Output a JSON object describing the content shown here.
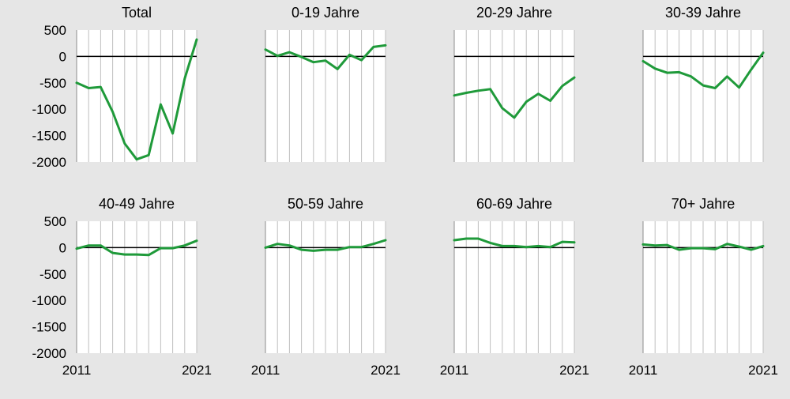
{
  "colors": {
    "background": "#e6e6e6",
    "plot_background": "#ffffff",
    "series_line": "#1f9a3a",
    "zero_line": "#000000",
    "grid": "#bfbfbf"
  },
  "chart_data": [
    {
      "type": "line",
      "title": "Total",
      "x": [
        2011,
        2012,
        2013,
        2014,
        2015,
        2016,
        2017,
        2018,
        2019,
        2020,
        2021
      ],
      "ylim": [
        -2000,
        500
      ],
      "yticks": [
        "500",
        "0",
        "-500",
        "-1000",
        "-1500",
        "-2000"
      ],
      "xtick_labels": [
        "2011",
        "2021"
      ],
      "grid": true,
      "series": [
        {
          "values": [
            -500,
            -600,
            -580,
            -1050,
            -1650,
            -1950,
            -1870,
            -910,
            -1460,
            -420,
            320
          ]
        }
      ]
    },
    {
      "type": "line",
      "title": "0-19 Jahre",
      "x": [
        2011,
        2012,
        2013,
        2014,
        2015,
        2016,
        2017,
        2018,
        2019,
        2020,
        2021
      ],
      "ylim": [
        -2000,
        500
      ],
      "yticks": [
        "500",
        "0",
        "-500",
        "-1000",
        "-1500",
        "-2000"
      ],
      "xtick_labels": [
        "2011",
        "2021"
      ],
      "grid": true,
      "series": [
        {
          "values": [
            130,
            10,
            80,
            -10,
            -110,
            -80,
            -240,
            30,
            -70,
            180,
            210
          ]
        }
      ]
    },
    {
      "type": "line",
      "title": "20-29 Jahre",
      "x": [
        2011,
        2012,
        2013,
        2014,
        2015,
        2016,
        2017,
        2018,
        2019,
        2020,
        2021
      ],
      "ylim": [
        -2000,
        500
      ],
      "yticks": [
        "500",
        "0",
        "-500",
        "-1000",
        "-1500",
        "-2000"
      ],
      "xtick_labels": [
        "2011",
        "2021"
      ],
      "grid": true,
      "series": [
        {
          "values": [
            -740,
            -690,
            -650,
            -620,
            -980,
            -1160,
            -860,
            -710,
            -840,
            -560,
            -400
          ]
        }
      ]
    },
    {
      "type": "line",
      "title": "30-39 Jahre",
      "x": [
        2011,
        2012,
        2013,
        2014,
        2015,
        2016,
        2017,
        2018,
        2019,
        2020,
        2021
      ],
      "ylim": [
        -2000,
        500
      ],
      "yticks": [
        "500",
        "0",
        "-500",
        "-1000",
        "-1500",
        "-2000"
      ],
      "xtick_labels": [
        "2011",
        "2021"
      ],
      "grid": true,
      "series": [
        {
          "values": [
            -90,
            -230,
            -310,
            -300,
            -380,
            -550,
            -600,
            -380,
            -590,
            -250,
            70
          ]
        }
      ]
    },
    {
      "type": "line",
      "title": "40-49 Jahre",
      "x": [
        2011,
        2012,
        2013,
        2014,
        2015,
        2016,
        2017,
        2018,
        2019,
        2020,
        2021
      ],
      "ylim": [
        -2000,
        500
      ],
      "yticks": [
        "500",
        "0",
        "-500",
        "-1000",
        "-1500",
        "-2000"
      ],
      "xtick_labels": [
        "2011",
        "2021"
      ],
      "grid": true,
      "series": [
        {
          "values": [
            -20,
            40,
            40,
            -100,
            -130,
            -130,
            -140,
            -10,
            -10,
            40,
            130
          ]
        }
      ]
    },
    {
      "type": "line",
      "title": "50-59 Jahre",
      "x": [
        2011,
        2012,
        2013,
        2014,
        2015,
        2016,
        2017,
        2018,
        2019,
        2020,
        2021
      ],
      "ylim": [
        -2000,
        500
      ],
      "yticks": [
        "500",
        "0",
        "-500",
        "-1000",
        "-1500",
        "-2000"
      ],
      "xtick_labels": [
        "2011",
        "2021"
      ],
      "grid": true,
      "series": [
        {
          "values": [
            0,
            70,
            40,
            -40,
            -60,
            -40,
            -40,
            10,
            10,
            70,
            140
          ]
        }
      ]
    },
    {
      "type": "line",
      "title": "60-69 Jahre",
      "x": [
        2011,
        2012,
        2013,
        2014,
        2015,
        2016,
        2017,
        2018,
        2019,
        2020,
        2021
      ],
      "ylim": [
        -2000,
        500
      ],
      "yticks": [
        "500",
        "0",
        "-500",
        "-1000",
        "-1500",
        "-2000"
      ],
      "xtick_labels": [
        "2011",
        "2021"
      ],
      "grid": true,
      "series": [
        {
          "values": [
            140,
            170,
            170,
            90,
            30,
            30,
            10,
            30,
            10,
            110,
            100
          ]
        }
      ]
    },
    {
      "type": "line",
      "title": "70+ Jahre",
      "x": [
        2011,
        2012,
        2013,
        2014,
        2015,
        2016,
        2017,
        2018,
        2019,
        2020,
        2021
      ],
      "ylim": [
        -2000,
        500
      ],
      "yticks": [
        "500",
        "0",
        "-500",
        "-1000",
        "-1500",
        "-2000"
      ],
      "xtick_labels": [
        "2011",
        "2021"
      ],
      "grid": true,
      "series": [
        {
          "values": [
            60,
            40,
            50,
            -40,
            -10,
            -10,
            -30,
            70,
            20,
            -40,
            30
          ]
        }
      ]
    }
  ]
}
